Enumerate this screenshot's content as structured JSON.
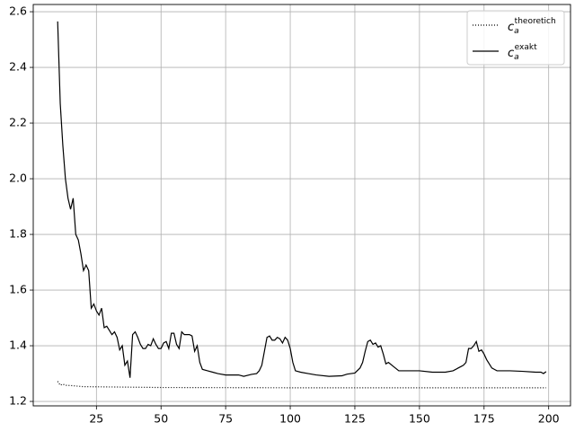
{
  "chart_data": {
    "type": "line",
    "xlim": [
      0.55,
      208.45
    ],
    "ylim": [
      1.184,
      2.626
    ],
    "xticks": [
      25,
      50,
      75,
      100,
      125,
      150,
      175,
      200
    ],
    "yticks": [
      1.2,
      1.4,
      1.6,
      1.8,
      {
        "value": 2,
        "label": "2.0"
      },
      2.2,
      2.4,
      2.6
    ],
    "grid": true,
    "legend": "upper right",
    "series": [
      {
        "name": {
          "base": "c",
          "sub": "a",
          "sup": "theoretich"
        },
        "color": "#000000",
        "style": "dotted",
        "x": [
          10,
          11,
          12,
          13,
          15,
          20,
          30,
          50,
          100,
          150,
          199
        ],
        "values": [
          1.272,
          1.258,
          1.262,
          1.258,
          1.257,
          1.253,
          1.252,
          1.25,
          1.249,
          1.249,
          1.249
        ]
      },
      {
        "name": {
          "base": "c",
          "sub": "a",
          "sup": "exakt"
        },
        "color": "#000000",
        "style": "solid",
        "x": [
          10,
          11,
          12,
          13,
          14,
          15,
          16,
          17,
          18,
          19,
          20,
          21,
          22,
          23,
          24,
          25,
          26,
          27,
          28,
          29,
          30,
          31,
          32,
          33,
          34,
          35,
          36,
          37,
          38,
          39,
          40,
          41,
          42,
          43,
          44,
          45,
          46,
          47,
          48,
          49,
          50,
          51,
          52,
          53,
          54,
          55,
          56,
          57,
          58,
          59,
          60,
          61,
          62,
          63,
          64,
          65,
          66,
          68,
          70,
          72,
          75,
          80,
          82,
          85,
          87,
          88,
          89,
          90,
          91,
          92,
          93,
          94,
          95,
          96,
          97,
          98,
          99,
          100,
          101,
          102,
          104,
          107,
          110,
          115,
          120,
          122,
          125,
          127,
          128,
          129,
          130,
          131,
          132,
          133,
          134,
          135,
          136,
          137,
          138,
          140,
          142,
          145,
          150,
          155,
          160,
          163,
          165,
          166,
          167,
          168,
          169,
          170,
          171,
          172,
          173,
          174,
          175,
          176,
          177,
          178,
          179,
          180,
          185,
          190,
          195,
          197,
          198,
          199
        ],
        "values": [
          2.565,
          2.27,
          2.12,
          2.0,
          1.93,
          1.89,
          1.93,
          1.8,
          1.78,
          1.73,
          1.67,
          1.69,
          1.67,
          1.535,
          1.55,
          1.525,
          1.51,
          1.535,
          1.465,
          1.47,
          1.455,
          1.44,
          1.45,
          1.43,
          1.385,
          1.4,
          1.33,
          1.345,
          1.285,
          1.44,
          1.45,
          1.43,
          1.405,
          1.39,
          1.39,
          1.405,
          1.4,
          1.425,
          1.405,
          1.39,
          1.39,
          1.41,
          1.415,
          1.39,
          1.445,
          1.445,
          1.405,
          1.39,
          1.45,
          1.44,
          1.44,
          1.44,
          1.435,
          1.38,
          1.4,
          1.34,
          1.315,
          1.31,
          1.305,
          1.3,
          1.295,
          1.295,
          1.29,
          1.297,
          1.3,
          1.31,
          1.33,
          1.38,
          1.43,
          1.435,
          1.42,
          1.42,
          1.43,
          1.425,
          1.41,
          1.43,
          1.42,
          1.39,
          1.34,
          1.31,
          1.305,
          1.3,
          1.295,
          1.29,
          1.292,
          1.298,
          1.302,
          1.32,
          1.34,
          1.38,
          1.415,
          1.42,
          1.405,
          1.41,
          1.395,
          1.4,
          1.37,
          1.335,
          1.34,
          1.325,
          1.31,
          1.31,
          1.31,
          1.305,
          1.305,
          1.31,
          1.32,
          1.325,
          1.33,
          1.34,
          1.39,
          1.39,
          1.4,
          1.415,
          1.38,
          1.385,
          1.37,
          1.35,
          1.335,
          1.32,
          1.315,
          1.31,
          1.31,
          1.308,
          1.305,
          1.305,
          1.3,
          1.307
        ]
      }
    ]
  }
}
